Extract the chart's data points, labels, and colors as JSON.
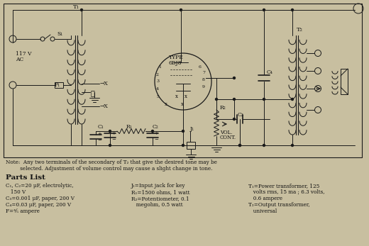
{
  "bg_color": "#c8bfa0",
  "line_color": "#1a1a1a",
  "font_color": "#111111",
  "fig_w": 5.2,
  "fig_h": 3.47,
  "dpi": 100,
  "note_text1": "Note:  Any two terminals of the secondary of T₂ that give the desired tone may be",
  "note_text2": "         selected. Adjustment of volume control may cause a slight change in tone.",
  "parts_list_title": "Parts List",
  "parts_col1": [
    "C₁, C₂=20 μF, electrolytic,",
    "   150 V",
    "C₃=0.001 μF, paper, 200 V",
    "C₄=0.03 μF, paper, 200 V",
    "F=⅘ ampere"
  ],
  "parts_col2": [
    "J₁=Input jack for key",
    "R₁=1500 ohms, 1 watt",
    "R₂=Potentiometer, 0.1",
    "   megohm, 0.5 watt"
  ],
  "parts_col3": [
    "T₁=Power transformer, 125",
    "   volts rms, 15 ma ; 6.3 volts,",
    "   0.6 ampere",
    "T₂=Output transformer,",
    "   universal"
  ]
}
